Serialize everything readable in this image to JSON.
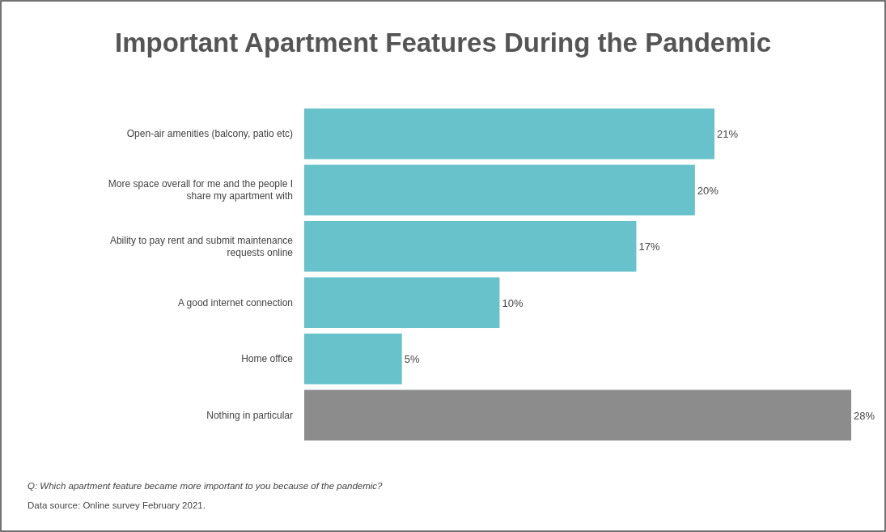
{
  "chart_data": {
    "type": "bar",
    "orientation": "horizontal",
    "title": "Important Apartment Features During the Pandemic",
    "categories": [
      "Open-air amenities (balcony, patio etc)",
      "More space overall for me and the people I share my apartment with",
      "Ability to pay rent and submit maintenance requests online",
      "A good internet connection",
      "Home office",
      "Nothing in particular"
    ],
    "values": [
      21,
      20,
      17,
      10,
      5,
      28
    ],
    "value_labels": [
      "21%",
      "20%",
      "17%",
      "10%",
      "5%",
      "28%"
    ],
    "colors": [
      "#67c2cb",
      "#67c2cb",
      "#67c2cb",
      "#67c2cb",
      "#67c2cb",
      "#8c8c8c"
    ],
    "annotations": [
      "Q: Which apartment feature became more important to you because of the pandemic?",
      "Data source: Online survey February 2021."
    ]
  }
}
